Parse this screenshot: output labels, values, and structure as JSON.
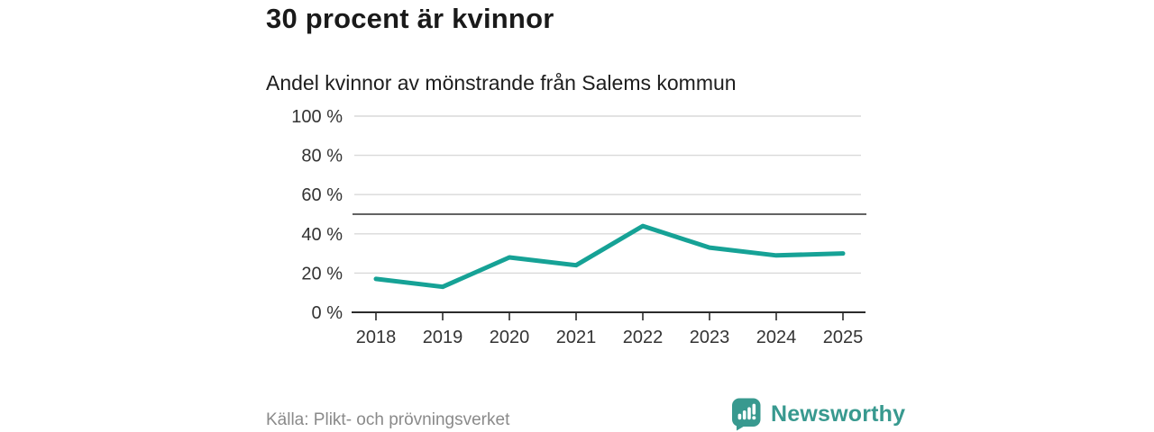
{
  "header": {
    "title": "30 procent är kvinnor",
    "subtitle": "Andel kvinnor av mönstrande från Salems kommun"
  },
  "chart_data": {
    "type": "line",
    "title": "Andel kvinnor av mönstrande från Salems kommun",
    "categories": [
      "2018",
      "2019",
      "2020",
      "2021",
      "2022",
      "2023",
      "2024",
      "2025"
    ],
    "values": [
      17,
      13,
      28,
      24,
      44,
      33,
      29,
      30
    ],
    "unit": "%",
    "ylim": [
      0,
      100
    ],
    "yticks": [
      0,
      20,
      40,
      60,
      80,
      100
    ],
    "ytick_labels": [
      "0 %",
      "20 %",
      "40 %",
      "60 %",
      "80 %",
      "100 %"
    ],
    "reference_line": 50,
    "grid": true,
    "legend": "none",
    "colors": {
      "line": "#16a296",
      "gridline": "#d9d9d9",
      "reference_line": "#4d4d4d",
      "axis": "#2b2b2b",
      "tick_label": "#333333"
    }
  },
  "footer": {
    "source": "Källa: Plikt- och prövningsverket",
    "brand": {
      "name": "Newsworthy",
      "color": "#38998f",
      "icon": "newsworthy-bubble-bar-chart-icon"
    }
  }
}
